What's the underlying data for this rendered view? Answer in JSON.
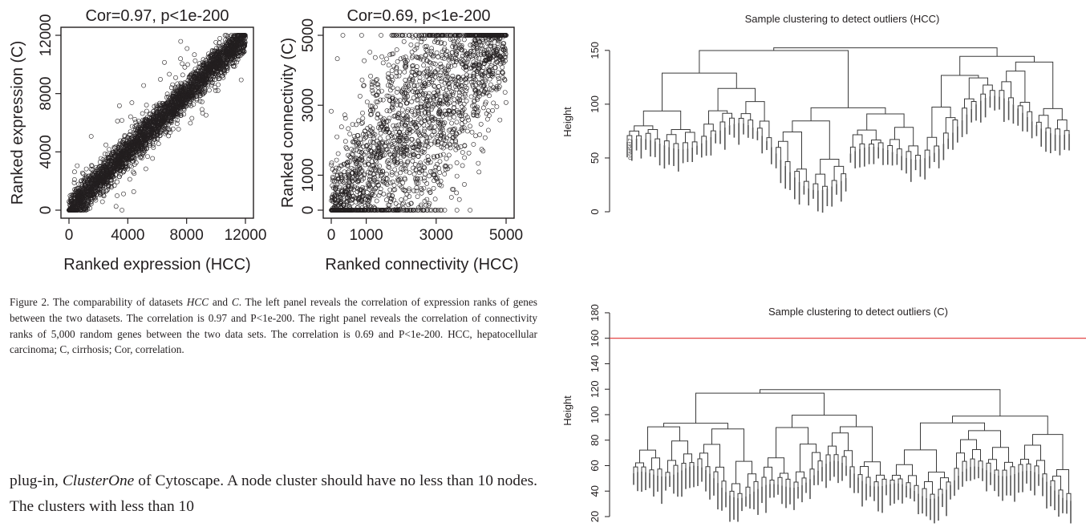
{
  "chart_data": [
    {
      "type": "scatter",
      "title": "Cor=0.97, p<1e-200",
      "xlabel": "Ranked expression (HCC)",
      "ylabel": "Ranked expression (C)",
      "xlim": [
        0,
        12000
      ],
      "ylim": [
        0,
        12000
      ],
      "xticks": [
        "0",
        "4000",
        "8000",
        "12000"
      ],
      "yticks": [
        "0",
        "4000",
        "8000",
        "12000"
      ],
      "correlation": 0.97,
      "n_points_approx": 12000
    },
    {
      "type": "scatter",
      "title": "Cor=0.69, p<1e-200",
      "xlabel": "Ranked connectivity (HCC)",
      "ylabel": "Ranked connectivity (C)",
      "xlim": [
        0,
        5000
      ],
      "ylim": [
        0,
        5000
      ],
      "xticks": [
        "0",
        "1000",
        "3000",
        "5000"
      ],
      "yticks": [
        "0",
        "1000",
        "3000",
        "5000"
      ],
      "correlation": 0.69,
      "n_points_approx": 5000
    },
    {
      "type": "dendrogram",
      "title": "Sample clustering to detect outliers (HCC)",
      "ylabel": "Height",
      "yticks": [
        "0",
        "50",
        "100",
        "150"
      ],
      "ylim": [
        0,
        170
      ],
      "outlier_label": "GSM5617"
    },
    {
      "type": "dendrogram",
      "title": "Sample clustering to detect outliers (C)",
      "ylabel": "Height",
      "yticks": [
        "20",
        "40",
        "60",
        "80",
        "100",
        "120",
        "140",
        "160",
        "180"
      ],
      "ylim": [
        20,
        185
      ],
      "cut_height": 160,
      "cut_line_color": "#e03030"
    }
  ],
  "caption": {
    "label": "Figure 2. ",
    "t1": "The comparability of datasets ",
    "i1": "HCC",
    "t2": " and ",
    "i2": "C",
    "t3": ". The left panel reveals the correlation of expression ranks of genes between the two datasets. The correlation is 0.97 and P<1e-200. The right panel reveals the correlation of connectivity ranks of 5,000 random genes between the two data sets. The correlation is 0.69 and P<1e-200. HCC, hepatocellular carcinoma; C, cirrhosis; Cor, correlation."
  },
  "body": {
    "t1": "plug-in, ",
    "i1": "ClusterOne",
    "t2": " of Cytoscape. A node cluster should have no less than 10 nodes. The clusters with less than 10"
  }
}
